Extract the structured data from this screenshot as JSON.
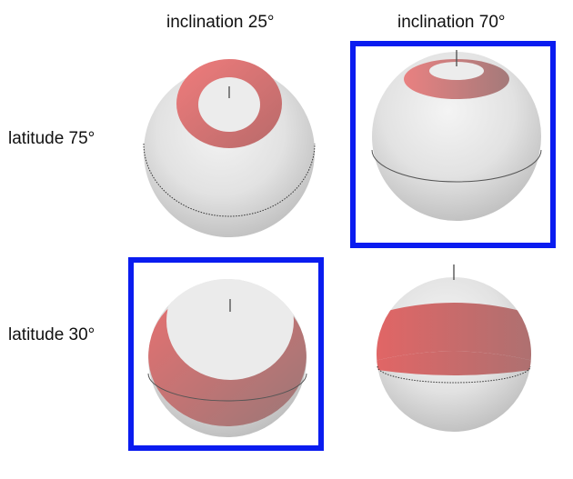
{
  "columns": [
    "inclination 25°",
    "inclination 70°"
  ],
  "rows": [
    "latitude 75°",
    "latitude 30°"
  ],
  "colors": {
    "sphere_light": "#f2f2f2",
    "sphere_dark": "#c4c4c4",
    "band_light": "#f07c7c",
    "band_dark": "#a17070",
    "highlight_frame": "#0a1cf0",
    "axis": "#555555"
  },
  "panels": [
    {
      "row": 0,
      "col": 0,
      "highlighted": false
    },
    {
      "row": 0,
      "col": 1,
      "highlighted": true
    },
    {
      "row": 1,
      "col": 0,
      "highlighted": true
    },
    {
      "row": 1,
      "col": 1,
      "highlighted": false
    }
  ]
}
